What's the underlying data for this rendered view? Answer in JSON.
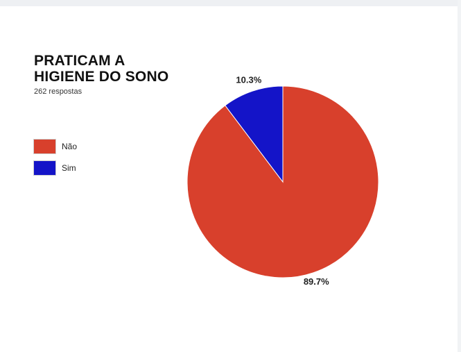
{
  "title_lines": [
    "PRATICAM A",
    "HIGIENE DO SONO"
  ],
  "subtitle": "262 respostas",
  "chart_data": {
    "type": "pie",
    "title": "PRATICAM A HIGIENE DO SONO",
    "subtitle": "262 respostas",
    "categories": [
      "Não",
      "Sim"
    ],
    "values": [
      89.7,
      10.3
    ],
    "labels": [
      "89.7%",
      "10.3%"
    ],
    "colors": [
      "#d8402c",
      "#1414c8"
    ],
    "legend_position": "left"
  }
}
